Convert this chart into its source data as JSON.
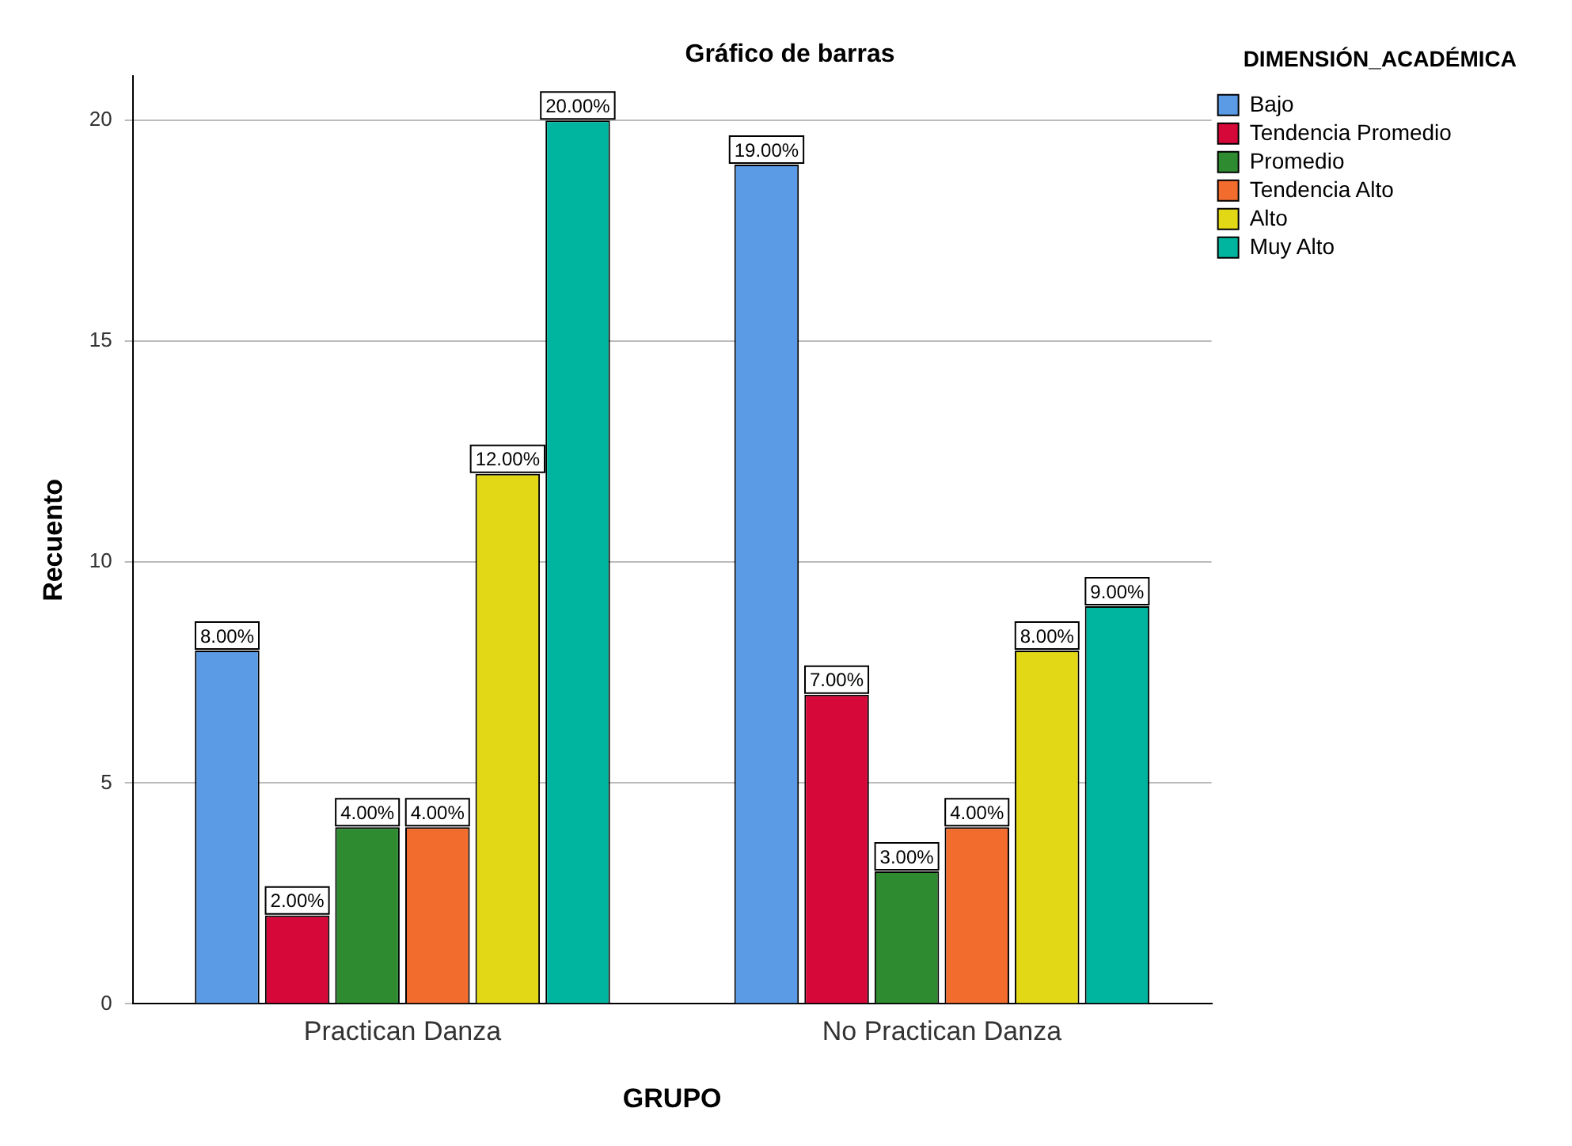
{
  "chart_data": {
    "type": "bar",
    "title": "Gráfico de barras",
    "xlabel": "GRUPO",
    "ylabel": "Recuento",
    "legend_title": "DIMENSIÓN_ACADÉMICA",
    "categories": [
      "Practican Danza",
      "No Practican Danza"
    ],
    "series": [
      {
        "name": "Bajo",
        "color": "#5b9be6",
        "values": [
          8,
          19
        ],
        "value_labels": [
          "8.00%",
          "19.00%"
        ]
      },
      {
        "name": "Tendencia Promedio",
        "color": "#d6083a",
        "values": [
          2,
          7
        ],
        "value_labels": [
          "2.00%",
          "7.00%"
        ]
      },
      {
        "name": "Promedio",
        "color": "#2e8b30",
        "values": [
          4,
          3
        ],
        "value_labels": [
          "4.00%",
          "3.00%"
        ]
      },
      {
        "name": "Tendencia Alto",
        "color": "#f26c2e",
        "values": [
          4,
          4
        ],
        "value_labels": [
          "4.00%",
          "4.00%"
        ]
      },
      {
        "name": "Alto",
        "color": "#e3d816",
        "values": [
          12,
          8
        ],
        "value_labels": [
          "12.00%",
          "8.00%"
        ]
      },
      {
        "name": "Muy Alto",
        "color": "#00b5a0",
        "values": [
          20,
          9
        ],
        "value_labels": [
          "20.00%",
          "9.00%"
        ]
      }
    ],
    "ylim": [
      0,
      21
    ],
    "yticks": [
      0,
      5,
      10,
      15,
      20
    ],
    "grid": "y",
    "legend": "right"
  }
}
